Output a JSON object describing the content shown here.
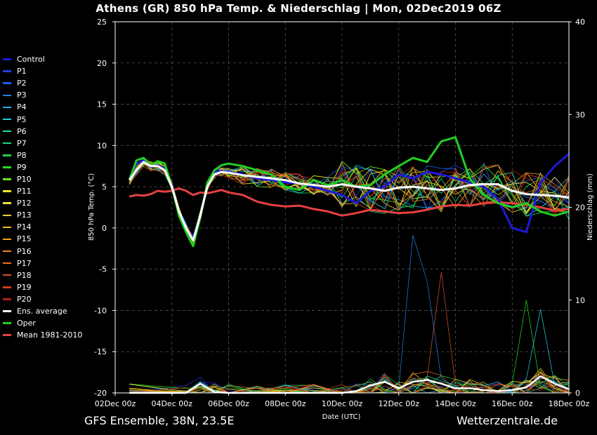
{
  "title": "Athens  (GR)  850 hPa Temp. & Niederschlag | Mon, 02Dec2019 06Z",
  "footer": {
    "left": "GFS Ensemble, 38N, 23.5E",
    "right": "Wetterzentrale.de"
  },
  "legend": [
    {
      "label": "Control",
      "color": "#1a1ad8"
    },
    {
      "label": "P1",
      "color": "#1f3fe0"
    },
    {
      "label": "P2",
      "color": "#2060e6"
    },
    {
      "label": "P3",
      "color": "#2080ea"
    },
    {
      "label": "P4",
      "color": "#20a8ee"
    },
    {
      "label": "P5",
      "color": "#20d0e0"
    },
    {
      "label": "P6",
      "color": "#20e0b0"
    },
    {
      "label": "P7",
      "color": "#20d880"
    },
    {
      "label": "P8",
      "color": "#20d050"
    },
    {
      "label": "P9",
      "color": "#20e020"
    },
    {
      "label": "P10",
      "color": "#70e020"
    },
    {
      "label": "P11",
      "color": "#f0f020"
    },
    {
      "label": "P12",
      "color": "#f0e040"
    },
    {
      "label": "P13",
      "color": "#f0d030"
    },
    {
      "label": "P14",
      "color": "#f0c020"
    },
    {
      "label": "P15",
      "color": "#f0a810"
    },
    {
      "label": "P16",
      "color": "#f08a20"
    },
    {
      "label": "P17",
      "color": "#e87020"
    },
    {
      "label": "P18",
      "color": "#e05020"
    },
    {
      "label": "P19",
      "color": "#d03818"
    },
    {
      "label": "P20",
      "color": "#b02010"
    },
    {
      "label": "Ens. average",
      "color": "#ffffff"
    },
    {
      "label": "Oper",
      "color": "#20d020"
    },
    {
      "label": "Mean 1981-2010",
      "color": "#e84040"
    }
  ],
  "chart_data": {
    "type": "line",
    "title": "Athens  (GR)  850 hPa Temp. & Niederschlag | Mon, 02Dec2019 06Z",
    "xlabel": "Date (UTC)",
    "ylabel": "850 hPa Temp. (°C)",
    "y2label": "Niederschlag (mm)",
    "x_ticks": [
      "02Dec 00z",
      "04Dec 00z",
      "06Dec 00z",
      "08Dec 00z",
      "10Dec 00z",
      "12Dec 00z",
      "14Dec 00z",
      "16Dec 00z",
      "18Dec 00z"
    ],
    "xlim_days": [
      0,
      16
    ],
    "ylim": [
      -20,
      25
    ],
    "y_ticks": [
      25,
      20,
      15,
      10,
      5,
      0,
      -5,
      -10,
      -15,
      -20
    ],
    "y2lim": [
      0,
      40
    ],
    "y2_ticks": [
      40,
      30,
      20,
      10,
      0
    ],
    "grid": true,
    "legend_position": "left-outside",
    "temp_x_days": [
      0.5,
      0.75,
      1.0,
      1.25,
      1.5,
      1.75,
      2.0,
      2.25,
      2.5,
      2.75,
      3.0,
      3.25,
      3.5,
      3.75,
      4.0,
      4.5,
      5.0,
      5.5,
      6.0,
      6.5,
      7.0,
      7.5,
      8.0,
      8.5,
      9.0,
      9.5,
      10.0,
      10.5,
      11.0,
      11.5,
      12.0,
      12.5,
      13.0,
      13.5,
      14.0,
      14.5,
      15.0,
      15.5,
      16.0
    ],
    "ensemble_average": [
      5.8,
      7.0,
      8.0,
      7.5,
      7.5,
      7.0,
      5.0,
      2.0,
      0.0,
      -1.5,
      1.5,
      5.0,
      6.5,
      6.8,
      6.7,
      6.4,
      6.2,
      6.0,
      5.8,
      5.4,
      5.2,
      5.0,
      5.3,
      5.0,
      4.8,
      4.5,
      4.9,
      5.0,
      4.8,
      4.6,
      4.8,
      5.2,
      5.3,
      5.3,
      4.5,
      4.1,
      4.0,
      3.9,
      3.7
    ],
    "oper": [
      5.8,
      8.2,
      8.5,
      7.6,
      8.1,
      7.8,
      5.0,
      1.5,
      -0.5,
      -2.2,
      1.2,
      5.5,
      7.0,
      7.6,
      7.8,
      7.5,
      7.0,
      6.5,
      5.0,
      4.6,
      5.8,
      5.2,
      5.8,
      5.0,
      5.2,
      6.5,
      7.5,
      8.5,
      8.0,
      10.5,
      11.0,
      6.0,
      4.0,
      3.0,
      2.5,
      3.0,
      2.0,
      1.5,
      2.0
    ],
    "control": [
      6.0,
      7.8,
      8.2,
      7.4,
      7.6,
      7.2,
      5.2,
      1.8,
      -0.2,
      -1.2,
      1.5,
      5.0,
      6.8,
      6.9,
      6.8,
      6.5,
      6.0,
      5.8,
      5.5,
      5.4,
      5.0,
      4.5,
      4.0,
      3.0,
      4.5,
      5.0,
      6.5,
      6.0,
      6.8,
      6.5,
      6.0,
      5.5,
      5.0,
      3.5,
      0.0,
      -0.5,
      5.5,
      7.5,
      9.0
    ],
    "climate_mean": [
      3.8,
      4.0,
      3.9,
      4.1,
      4.5,
      4.4,
      4.5,
      4.8,
      4.5,
      4.0,
      4.3,
      4.2,
      4.4,
      4.6,
      4.3,
      4.0,
      3.2,
      2.8,
      2.6,
      2.7,
      2.3,
      2.0,
      1.5,
      1.8,
      2.2,
      2.0,
      1.8,
      1.9,
      2.2,
      2.6,
      2.8,
      2.7,
      3.0,
      3.1,
      3.0,
      2.8,
      2.5,
      2.1,
      2.3
    ],
    "precip_x_days": [
      0.5,
      2.5,
      3.0,
      3.5,
      4.0,
      5.0,
      6.0,
      7.0,
      8.0,
      8.5,
      9.0,
      9.5,
      10.0,
      10.5,
      11.0,
      11.5,
      12.0,
      12.5,
      13.0,
      13.5,
      14.0,
      14.5,
      15.0,
      15.5,
      16.0
    ],
    "precip_ensemble_average": [
      0.0,
      0.0,
      1.0,
      0.1,
      0.0,
      0.0,
      0.0,
      0.0,
      0.0,
      0.2,
      0.8,
      1.2,
      0.5,
      1.2,
      1.4,
      1.0,
      0.5,
      0.5,
      0.3,
      0.2,
      0.3,
      0.6,
      1.8,
      1.0,
      0.4
    ]
  }
}
